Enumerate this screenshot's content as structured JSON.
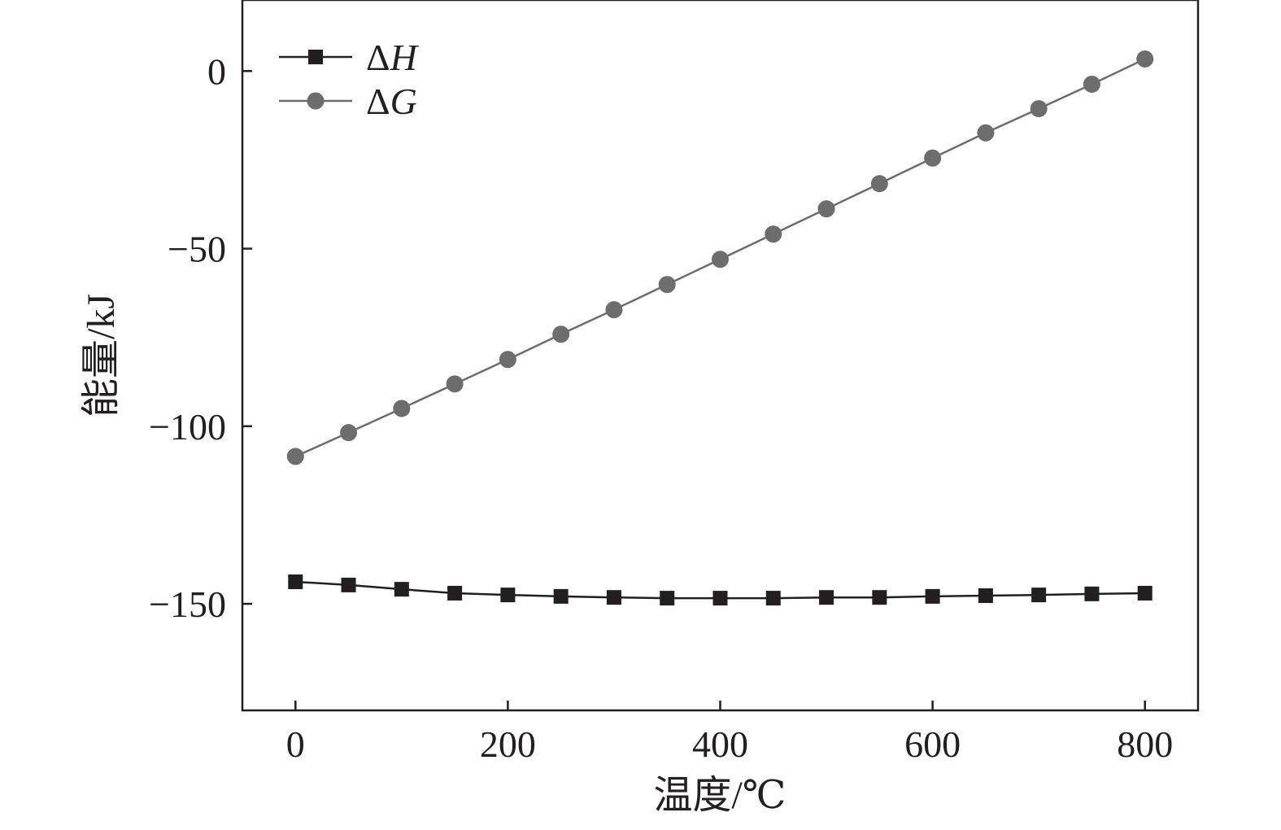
{
  "chart_data": {
    "type": "line",
    "title": "",
    "xlabel": "温度/℃",
    "ylabel": "能量/kJ",
    "xlim": [
      -50,
      850
    ],
    "ylim": [
      -180,
      20
    ],
    "xticks": [
      0,
      200,
      400,
      600,
      800
    ],
    "yticks": [
      0,
      -50,
      -100,
      -150
    ],
    "ytick_labels": [
      "0",
      "−50",
      "−100",
      "−150"
    ],
    "grid": false,
    "legend_position": "top-left",
    "x": [
      0,
      50,
      100,
      150,
      200,
      250,
      300,
      350,
      400,
      450,
      500,
      550,
      600,
      650,
      700,
      750,
      800
    ],
    "series": [
      {
        "name": "ΔH",
        "marker": "square",
        "color": "#231f20",
        "values": [
          -143.8,
          -144.7,
          -145.9,
          -147.0,
          -147.5,
          -147.9,
          -148.2,
          -148.4,
          -148.4,
          -148.4,
          -148.2,
          -148.2,
          -147.9,
          -147.7,
          -147.5,
          -147.2,
          -147.0
        ]
      },
      {
        "name": "ΔG",
        "marker": "circle",
        "color": "#6d6d6d",
        "values": [
          -108.5,
          -101.8,
          -95.0,
          -88.1,
          -81.2,
          -74.1,
          -67.2,
          -60.1,
          -53.0,
          -45.9,
          -38.8,
          -31.7,
          -24.5,
          -17.4,
          -10.6,
          -3.7,
          3.4
        ]
      }
    ]
  }
}
